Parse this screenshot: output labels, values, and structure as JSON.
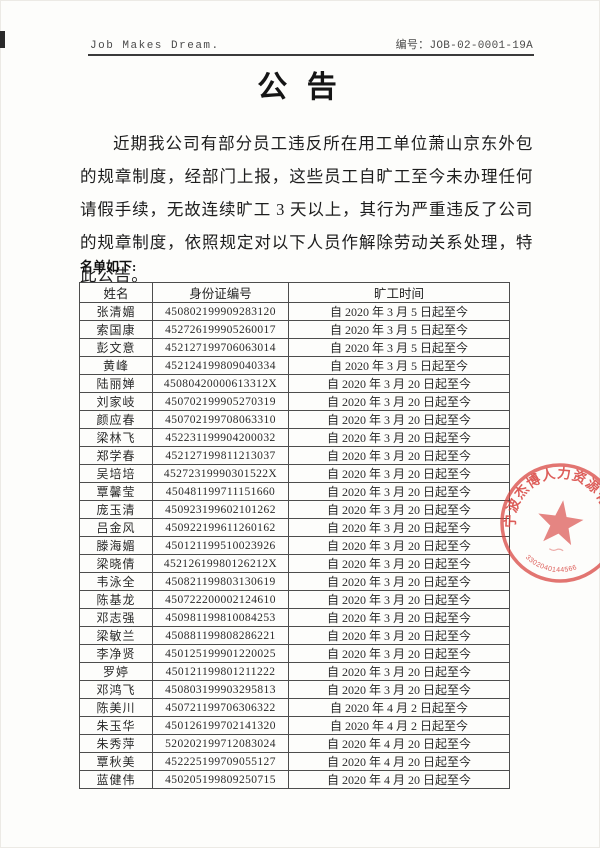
{
  "header": {
    "slogan": "Job Makes Dream.",
    "doc_number": "编号：JOB-02-0001-19A"
  },
  "title": "公 告",
  "body_paragraph": "近期我公司有部分员工违反所在用工单位萧山京东外包的规章制度，经部门上报，这些员工自旷工至今未办理任何请假手续，无故连续旷工 3 天以上，其行为严重违反了公司的规章制度，依照规定对以下人员作解除劳动关系处理，特此公告。",
  "list_label": "名单如下:",
  "table": {
    "headers": [
      "姓名",
      "身份证编号",
      "旷工时间"
    ],
    "rows": [
      [
        "张清媚",
        "450802199909283120",
        "自 2020 年 3 月 5 日起至今"
      ],
      [
        "索国康",
        "452726199905260017",
        "自 2020 年 3 月 5 日起至今"
      ],
      [
        "彭文意",
        "452127199706063014",
        "自 2020 年 3 月 5 日起至今"
      ],
      [
        "黄峰",
        "452124199809040334",
        "自 2020 年 3 月 5 日起至今"
      ],
      [
        "陆丽婵",
        "45080420000613312X",
        "自 2020 年 3 月 20 日起至今"
      ],
      [
        "刘家岐",
        "450702199905270319",
        "自 2020 年 3 月 20 日起至今"
      ],
      [
        "颜应春",
        "450702199708063310",
        "自 2020 年 3 月 20 日起至今"
      ],
      [
        "梁林飞",
        "452231199904200032",
        "自 2020 年 3 月 20 日起至今"
      ],
      [
        "郑学春",
        "452127199811213037",
        "自 2020 年 3 月 20 日起至今"
      ],
      [
        "吴培培",
        "45272319990301522X",
        "自 2020 年 3 月 20 日起至今"
      ],
      [
        "覃馨莹",
        "450481199711151660",
        "自 2020 年 3 月 20 日起至今"
      ],
      [
        "庞玉清",
        "450923199602101262",
        "自 2020 年 3 月 20 日起至今"
      ],
      [
        "吕金风",
        "450922199611260162",
        "自 2020 年 3 月 20 日起至今"
      ],
      [
        "滕海媚",
        "450121199510023926",
        "自 2020 年 3 月 20 日起至今"
      ],
      [
        "梁晓倩",
        "45212619980126212X",
        "自 2020 年 3 月 20 日起至今"
      ],
      [
        "韦泳全",
        "450821199803130619",
        "自 2020 年 3 月 20 日起至今"
      ],
      [
        "陈基龙",
        "450722200002124610",
        "自 2020 年 3 月 20 日起至今"
      ],
      [
        "邓志强",
        "450981199810084253",
        "自 2020 年 3 月 20 日起至今"
      ],
      [
        "梁敏兰",
        "450881199808286221",
        "自 2020 年 3 月 20 日起至今"
      ],
      [
        "李净贤",
        "450125199901220025",
        "自 2020 年 3 月 20 日起至今"
      ],
      [
        "罗婷",
        "450121199801211222",
        "自 2020 年 3 月 20 日起至今"
      ],
      [
        "邓鸿飞",
        "450803199903295813",
        "自 2020 年 3 月 20 日起至今"
      ],
      [
        "陈美川",
        "450721199706306322",
        "自 2020 年 4 月 2 日起至今"
      ],
      [
        "朱玉华",
        "450126199702141320",
        "自 2020 年 4 月 2 日起至今"
      ],
      [
        "朱秀萍",
        "520202199712083024",
        "自 2020 年 4 月 20 日起至今"
      ],
      [
        "覃秋美",
        "452225199709055127",
        "自 2020 年 4 月 20 日起至今"
      ],
      [
        "蓝健伟",
        "450205199809250715",
        "自 2020 年 4 月 20 日起至今"
      ]
    ]
  },
  "seal": {
    "company": "宁波杰博人力资源有限公司",
    "number": "3302040144566",
    "color": "#d8423d"
  }
}
